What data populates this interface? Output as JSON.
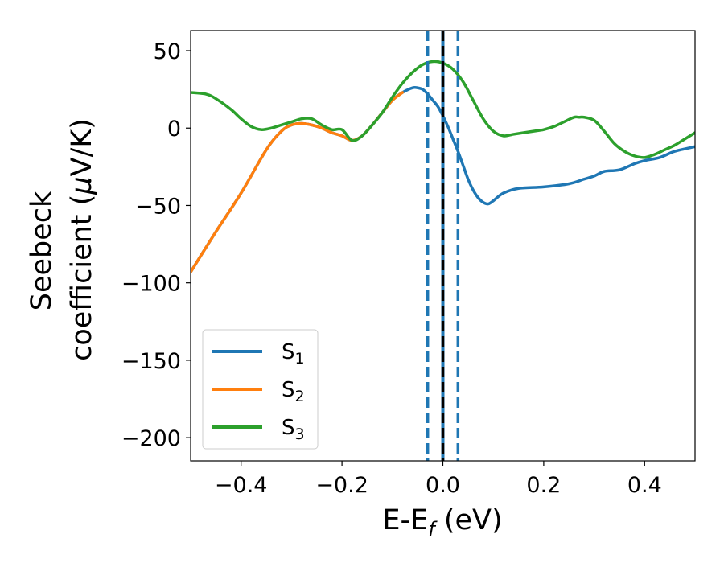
{
  "chart_data": {
    "type": "line",
    "xlabel": "E-E_f (eV)",
    "ylabel_line1": "Seebeck",
    "ylabel_line2": "coefficient  (μV/K)",
    "xlim": [
      -0.5,
      0.5
    ],
    "ylim": [
      -215,
      63
    ],
    "xticks": [
      -0.4,
      -0.2,
      0.0,
      0.2,
      0.4
    ],
    "xtick_labels": [
      "−0.4",
      "−0.2",
      "0.0",
      "0.2",
      "0.4"
    ],
    "yticks": [
      50,
      0,
      -50,
      -100,
      -150,
      -200
    ],
    "ytick_labels": [
      "50",
      "0",
      "−50",
      "−100",
      "−150",
      "−200"
    ],
    "legend_position": "lower-left",
    "vertical_lines": [
      {
        "x": -0.03,
        "style": "dashed",
        "color": "#1f77b4"
      },
      {
        "x": 0.03,
        "style": "dashed",
        "color": "#1f77b4"
      },
      {
        "x": 0.0,
        "style": "solid",
        "color": "#1f77b4"
      },
      {
        "x": 0.0,
        "style": "dashed",
        "color": "#000000"
      }
    ],
    "series": [
      {
        "name": "S1",
        "color": "#1f77b4",
        "x": [
          -0.5,
          -0.45,
          -0.4,
          -0.35,
          -0.32,
          -0.3,
          -0.28,
          -0.26,
          -0.24,
          -0.22,
          -0.2,
          -0.18,
          -0.16,
          -0.14,
          -0.12,
          -0.1,
          -0.08,
          -0.06,
          -0.05,
          -0.04,
          -0.03,
          -0.02,
          -0.01,
          0.0,
          0.01,
          0.02,
          0.03,
          0.04,
          0.05,
          0.06,
          0.07,
          0.08,
          0.09,
          0.1,
          0.12,
          0.15,
          0.2,
          0.25,
          0.28,
          0.3,
          0.32,
          0.35,
          0.38,
          0.4,
          0.43,
          0.46,
          0.5
        ],
        "y": [
          -93,
          -67,
          -42,
          -14,
          -2,
          2,
          3,
          2,
          0,
          -3,
          -5,
          -8,
          -5,
          2,
          10,
          18,
          23,
          26,
          26,
          25,
          22,
          18,
          14,
          8,
          1,
          -7,
          -15,
          -24,
          -33,
          -40,
          -45,
          -48,
          -49,
          -47,
          -42,
          -39,
          -38,
          -36,
          -33,
          -31,
          -28,
          -27,
          -23,
          -21,
          -19,
          -15,
          -12
        ]
      },
      {
        "name": "S2",
        "color": "#ff7f0e",
        "x": [
          -0.5,
          -0.45,
          -0.4,
          -0.35,
          -0.32,
          -0.3,
          -0.28,
          -0.26,
          -0.24,
          -0.22,
          -0.2,
          -0.18,
          -0.16,
          -0.14,
          -0.12,
          -0.1,
          -0.08
        ],
        "y": [
          -93,
          -67,
          -42,
          -14,
          -2,
          2,
          3,
          2,
          0,
          -3,
          -5,
          -8,
          -5,
          2,
          10,
          18,
          23
        ]
      },
      {
        "name": "S3",
        "color": "#2ca02c",
        "x": [
          -0.5,
          -0.47,
          -0.45,
          -0.42,
          -0.4,
          -0.38,
          -0.36,
          -0.34,
          -0.32,
          -0.3,
          -0.28,
          -0.26,
          -0.24,
          -0.22,
          -0.2,
          -0.18,
          -0.16,
          -0.14,
          -0.12,
          -0.1,
          -0.08,
          -0.06,
          -0.04,
          -0.02,
          0.0,
          0.02,
          0.04,
          0.06,
          0.08,
          0.1,
          0.12,
          0.14,
          0.16,
          0.18,
          0.2,
          0.22,
          0.24,
          0.26,
          0.27,
          0.28,
          0.3,
          0.32,
          0.34,
          0.36,
          0.38,
          0.4,
          0.42,
          0.44,
          0.46,
          0.48,
          0.5
        ],
        "y": [
          23,
          22,
          19,
          12,
          6,
          1,
          -1,
          0,
          2,
          4,
          6,
          6,
          2,
          -1,
          -1,
          -8,
          -5,
          2,
          10,
          20,
          29,
          36,
          41,
          43,
          42,
          38,
          30,
          18,
          6,
          -2,
          -5,
          -4,
          -3,
          -2,
          -1,
          1,
          4,
          7,
          7,
          7,
          5,
          -2,
          -10,
          -15,
          -18,
          -19,
          -17,
          -14,
          -11,
          -7,
          -3
        ]
      }
    ]
  }
}
